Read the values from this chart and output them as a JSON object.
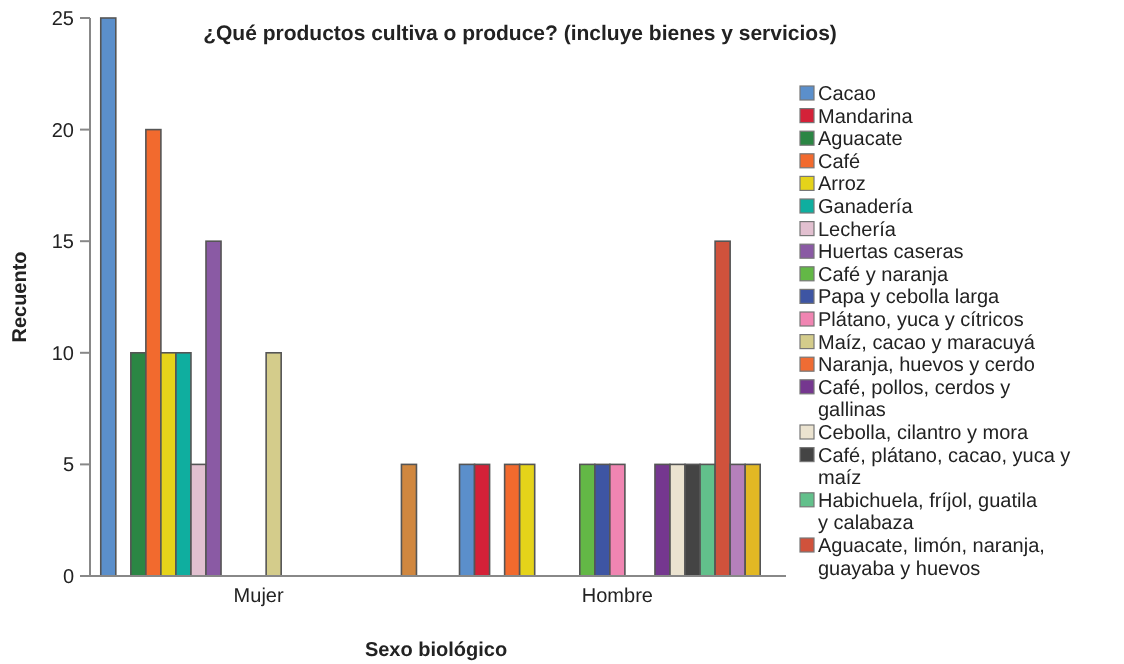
{
  "chart_data": {
    "type": "bar",
    "title": "¿Qué productos cultiva o produce? (incluye bienes y servicios)",
    "xlabel": "Sexo biológico",
    "ylabel": "Recuento",
    "categories": [
      "Mujer",
      "Hombre"
    ],
    "ylim": [
      0,
      25
    ],
    "yticks": [
      0,
      5,
      10,
      15,
      20,
      25
    ],
    "grid": false,
    "legend": "right",
    "series": [
      {
        "name": "Cacao",
        "color": "#5b8fcb",
        "values": [
          25,
          5
        ]
      },
      {
        "name": "Mandarina",
        "color": "#d42138",
        "values": [
          null,
          5
        ]
      },
      {
        "name": "Aguacate",
        "color": "#2b8644",
        "values": [
          10,
          null
        ]
      },
      {
        "name": "Café",
        "color": "#f26a2e",
        "values": [
          20,
          5
        ]
      },
      {
        "name": "Arroz",
        "color": "#e5d31a",
        "values": [
          10,
          5
        ]
      },
      {
        "name": "Ganadería",
        "color": "#0fae9f",
        "values": [
          10,
          null
        ]
      },
      {
        "name": "Lechería",
        "color": "#e2c0d0",
        "values": [
          5,
          null
        ]
      },
      {
        "name": "Huertas caseras",
        "color": "#8a5aa4",
        "values": [
          15,
          null
        ]
      },
      {
        "name": "Café y naranja",
        "color": "#63b846",
        "values": [
          null,
          5
        ]
      },
      {
        "name": "Papa y cebolla larga",
        "color": "#3e55a3",
        "values": [
          null,
          5
        ]
      },
      {
        "name": "Plátano, yuca y cítricos",
        "color": "#f085b2",
        "values": [
          null,
          5
        ]
      },
      {
        "name": "Maíz, cacao y maracuyá",
        "color": "#d4cc8b",
        "values": [
          10,
          null
        ]
      },
      {
        "name": "Naranja, huevos y cerdo",
        "color": "#ef6c34",
        "values": [
          null,
          null
        ]
      },
      {
        "name": "Café, pollos, cerdos y gallinas",
        "color": "#75378f",
        "values": [
          null,
          5
        ]
      },
      {
        "name": "Cebolla, cilantro y mora",
        "color": "#ebe3d0",
        "values": [
          null,
          5
        ]
      },
      {
        "name": "Café, plátano, cacao, yuca y maíz",
        "color": "#444444",
        "values": [
          null,
          5
        ]
      },
      {
        "name": "Habichuela, fríjol, guatila y calabaza",
        "color": "#62c08b",
        "values": [
          null,
          5
        ]
      },
      {
        "name": "Aguacate, limón, naranja, guayaba y huevos",
        "color": "#d0523c",
        "values": [
          null,
          15
        ]
      },
      {
        "color": "#b580bb",
        "values": [
          null,
          5
        ]
      },
      {
        "color": "#e2b824",
        "values": [
          null,
          5
        ]
      },
      {
        "color": "#d0873f",
        "values": [
          5,
          null
        ]
      }
    ]
  }
}
